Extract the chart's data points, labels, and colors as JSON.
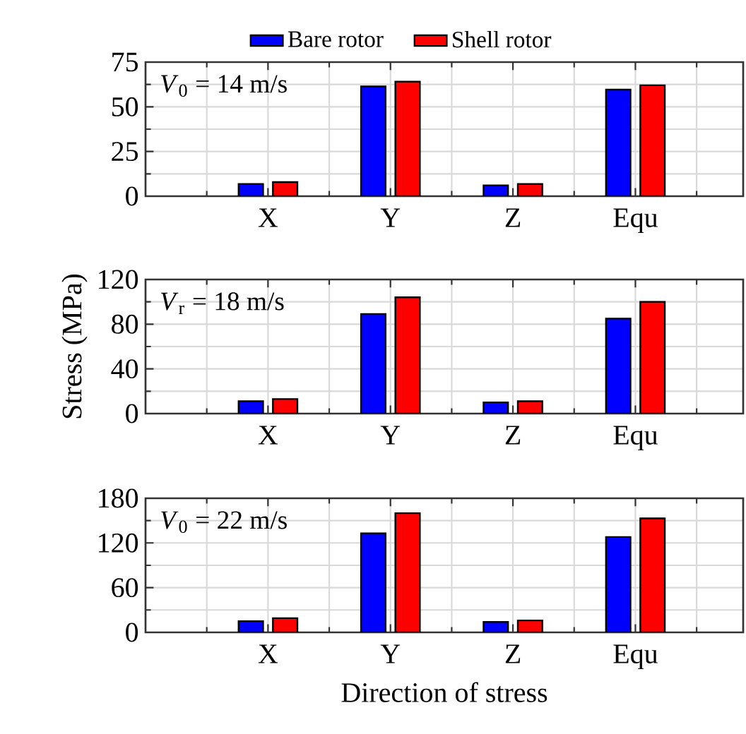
{
  "chart_data": [
    {
      "type": "bar",
      "categories": [
        "X",
        "Y",
        "Z",
        "Equ"
      ],
      "ylim": [
        0,
        75
      ],
      "yticks": [
        0,
        25,
        50,
        75
      ],
      "grid": true,
      "legend": "top",
      "annotations": [
        "*V*$_{0}$ = 14 m/s"
      ],
      "series": [
        {
          "name": "Bare rotor",
          "color": "#0000ff",
          "values": [
            6.8,
            61.4,
            6.0,
            59.6
          ]
        },
        {
          "name": "Shell rotor",
          "color": "#ff0000",
          "values": [
            7.9,
            64.1,
            6.8,
            62.0
          ]
        }
      ]
    },
    {
      "type": "bar",
      "categories": [
        "X",
        "Y",
        "Z",
        "Equ"
      ],
      "ylim": [
        0,
        120
      ],
      "yticks": [
        0,
        40,
        80,
        120
      ],
      "grid": true,
      "ylabel": "Stress (MPa)",
      "annotations": [
        "*V*$_{r}$ = 18 m/s"
      ],
      "series": [
        {
          "color": "#0000ff",
          "values": [
            11,
            89,
            10,
            85
          ]
        },
        {
          "color": "#ff0000",
          "values": [
            13,
            104,
            11,
            100
          ]
        }
      ]
    },
    {
      "type": "bar",
      "categories": [
        "X",
        "Y",
        "Z",
        "Equ"
      ],
      "ylim": [
        0,
        180
      ],
      "yticks": [
        0,
        60,
        120,
        180
      ],
      "grid": true,
      "xlabel": "Direction of stress",
      "annotations": [
        "*V*$_{0}$ = 22 m/s"
      ],
      "series": [
        {
          "color": "#0000ff",
          "values": [
            15,
            133,
            14,
            128
          ]
        },
        {
          "color": "#ff0000",
          "values": [
            19,
            160,
            16,
            153
          ]
        }
      ]
    }
  ]
}
